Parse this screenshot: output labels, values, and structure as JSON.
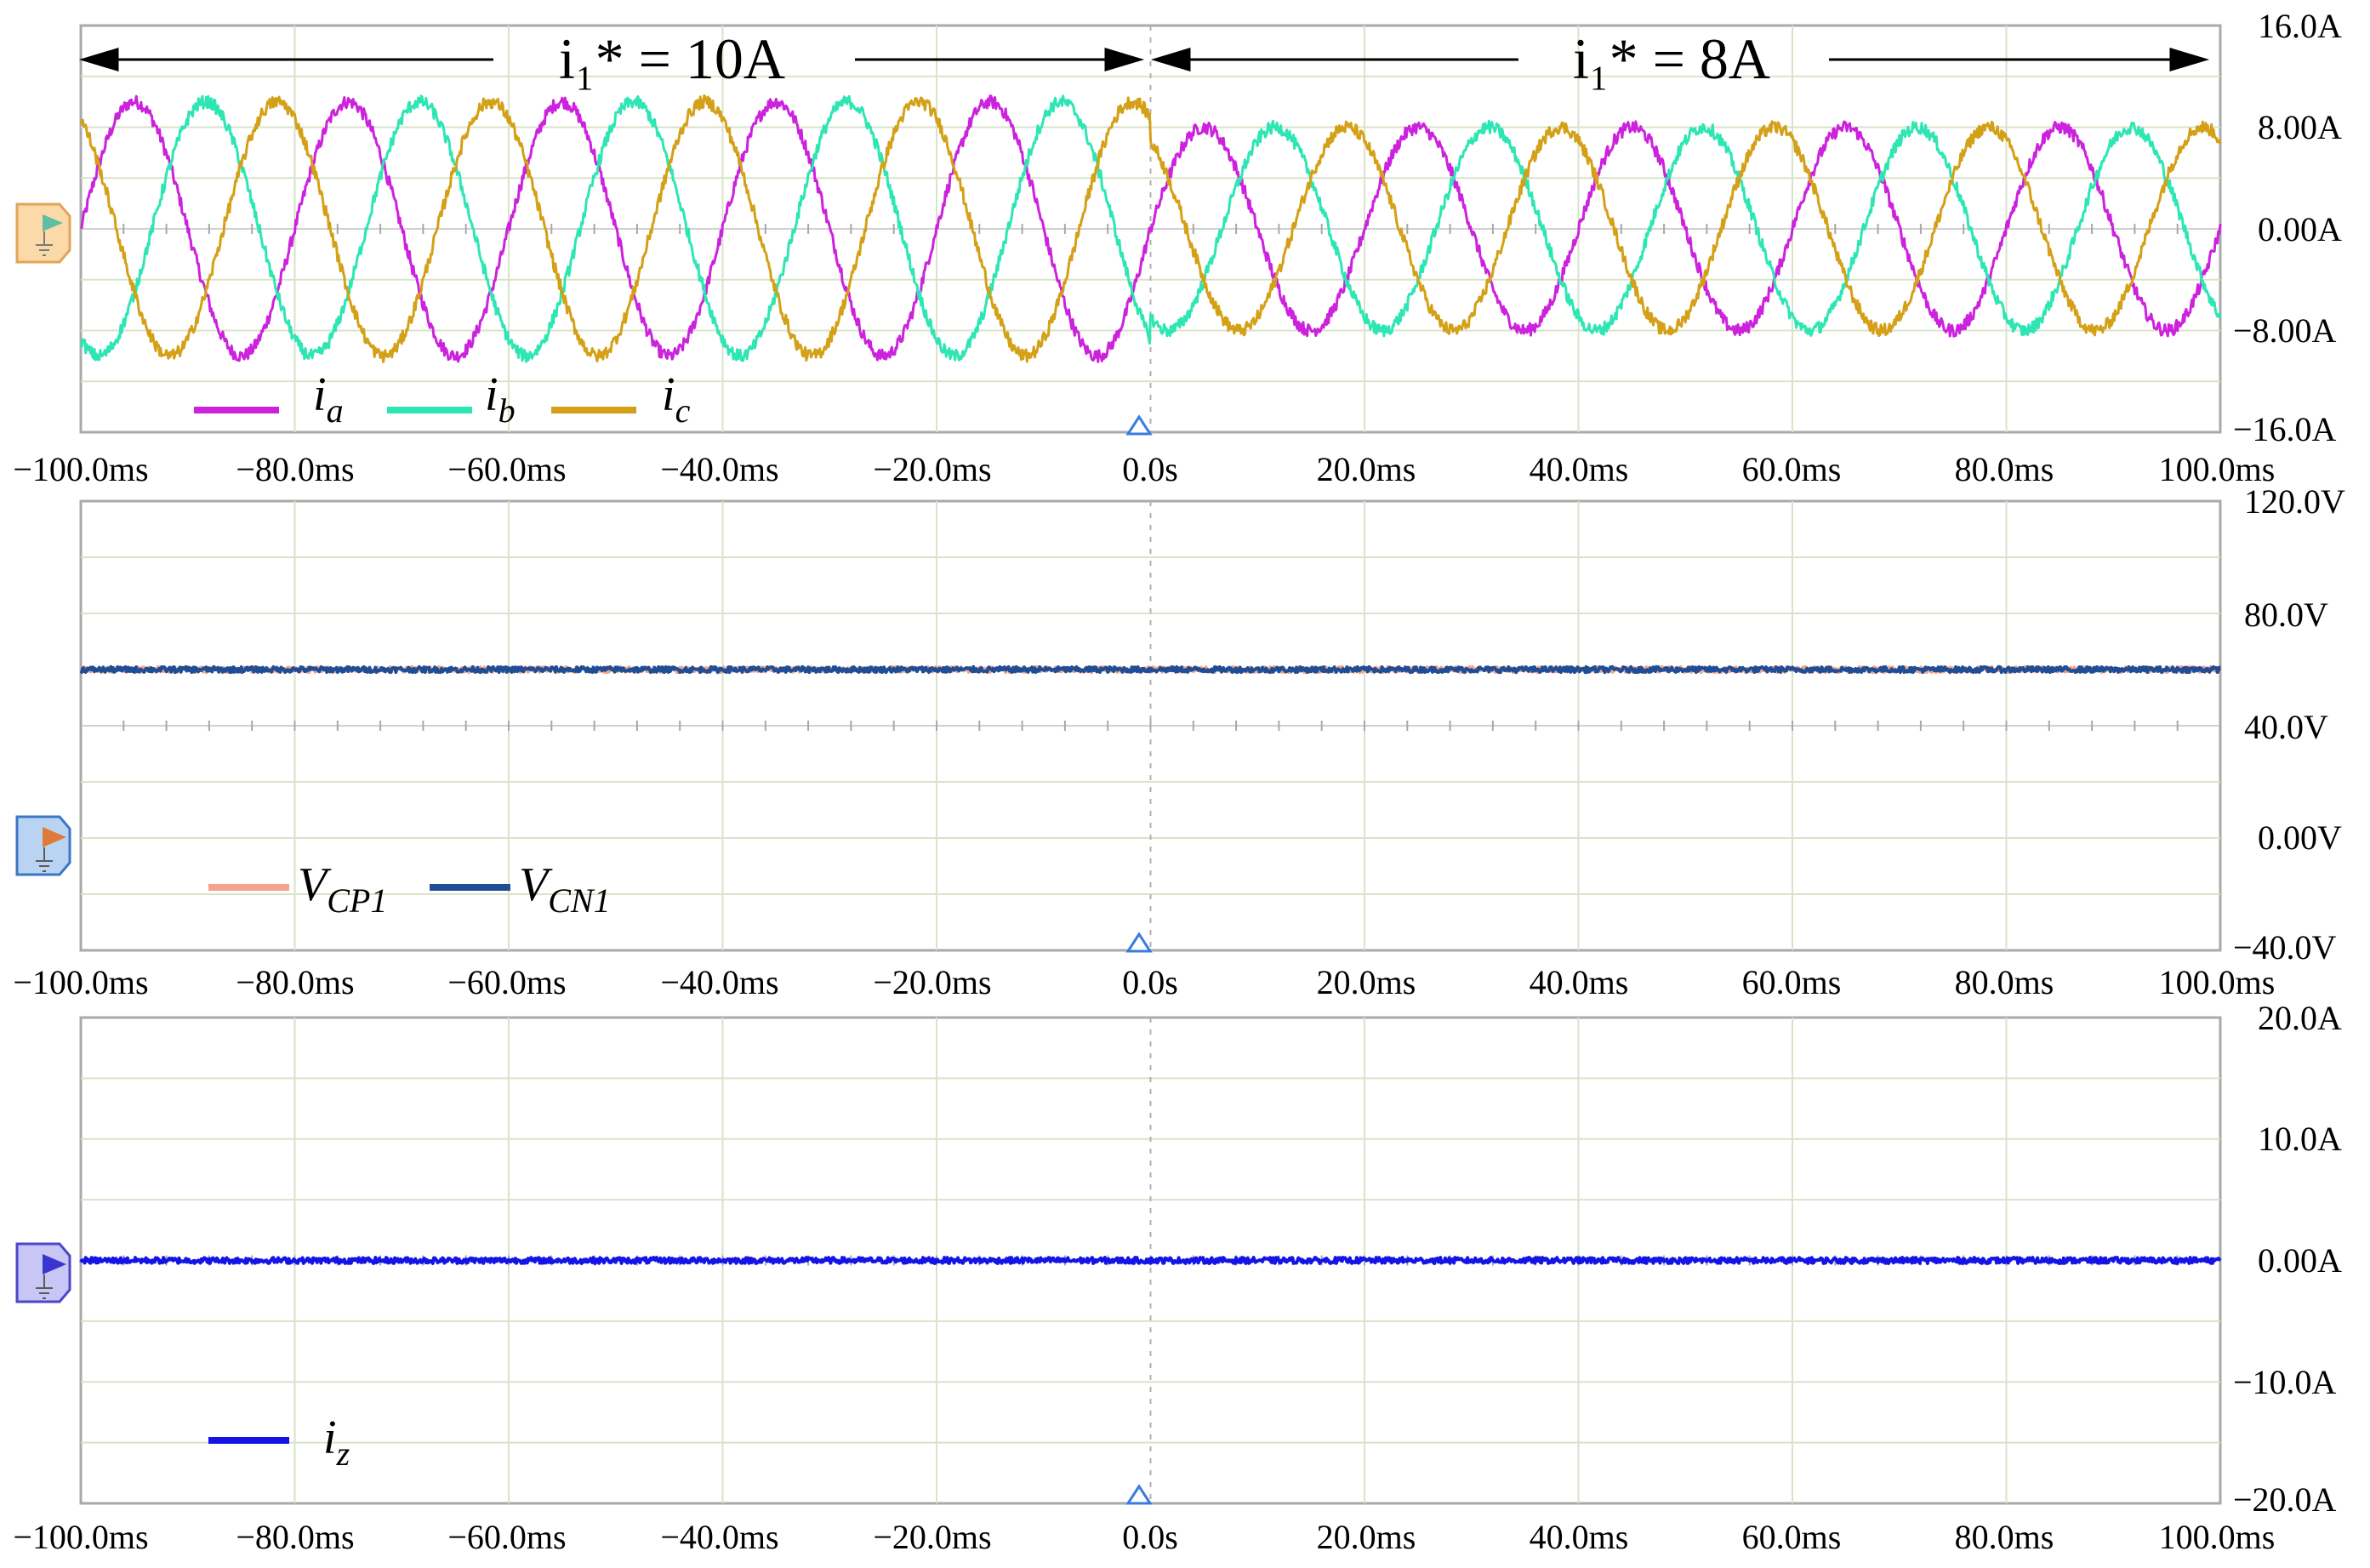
{
  "chart_data": [
    {
      "type": "line",
      "x_unit": "ms",
      "x_range": [
        -100,
        100
      ],
      "x_tick_labels": [
        "−100.0ms",
        "−80.0ms",
        "−60.0ms",
        "−40.0ms",
        "−20.0ms",
        "0.0s",
        "20.0ms",
        "40.0ms",
        "60.0ms",
        "80.0ms",
        "100.0ms"
      ],
      "ylim": [
        -16,
        16
      ],
      "y_tick_labels": [
        "16.0A",
        "8.00A",
        "0.00A",
        "−8.00A",
        "−16.0A"
      ],
      "grid": true,
      "legend_position": "bottom-left",
      "annotations": [
        {
          "text": "i₁* = 10A",
          "span_ms": [
            -100,
            0
          ]
        },
        {
          "text": "i₁* = 8A",
          "span_ms": [
            0,
            100
          ]
        }
      ],
      "series": [
        {
          "name": "ia",
          "color": "#cc22dd",
          "amplitude_before": 10,
          "amplitude_after": 8,
          "frequency_hz": 50,
          "phase_deg": 0
        },
        {
          "name": "ib",
          "color": "#2ee6b4",
          "amplitude_before": 10,
          "amplitude_after": 8,
          "frequency_hz": 50,
          "phase_deg": -120
        },
        {
          "name": "ic",
          "color": "#d4a017",
          "amplitude_before": 10,
          "amplitude_after": 8,
          "frequency_hz": 50,
          "phase_deg": 120
        }
      ]
    },
    {
      "type": "line",
      "x_unit": "ms",
      "x_range": [
        -100,
        100
      ],
      "x_tick_labels": [
        "−100.0ms",
        "−80.0ms",
        "−60.0ms",
        "−40.0ms",
        "−20.0ms",
        "0.0s",
        "20.0ms",
        "40.0ms",
        "60.0ms",
        "80.0ms",
        "100.0ms"
      ],
      "ylim": [
        -40,
        120
      ],
      "y_tick_labels": [
        "120.0V",
        "80.0V",
        "40.0V",
        "0.00V",
        "−40.0V"
      ],
      "grid": true,
      "legend_position": "bottom-left",
      "series": [
        {
          "name": "VCP1",
          "color": "#f4a48c",
          "value": 60
        },
        {
          "name": "VCN1",
          "color": "#1f4e96",
          "value": 60
        }
      ]
    },
    {
      "type": "line",
      "x_unit": "ms",
      "x_range": [
        -100,
        100
      ],
      "x_tick_labels": [
        "−100.0ms",
        "−80.0ms",
        "−60.0ms",
        "−40.0ms",
        "−20.0ms",
        "0.0s",
        "20.0ms",
        "40.0ms",
        "60.0ms",
        "80.0ms",
        "100.0ms"
      ],
      "ylim": [
        -20,
        20
      ],
      "y_tick_labels": [
        "20.0A",
        "10.0A",
        "0.00A",
        "−10.0A",
        "−20.0A"
      ],
      "grid": true,
      "legend_position": "bottom-left",
      "series": [
        {
          "name": "iz",
          "color": "#1414e6",
          "value": 0
        }
      ]
    }
  ]
}
